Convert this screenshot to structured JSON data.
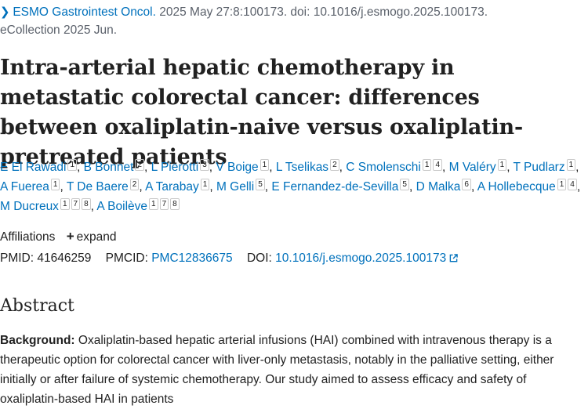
{
  "citation": {
    "journal": "ESMO Gastrointest Oncol.",
    "details": "2025 May 27:8:100173. doi: 10.1016/j.esmogo.2025.100173.",
    "ecollection": "eCollection 2025 Jun."
  },
  "title": "Intra-arterial hepatic chemotherapy in metastatic colorectal cancer: differences between oxaliplatin-naive versus oxaliplatin-pretreated patients",
  "authors": [
    {
      "name": "E El Rawadi",
      "affs": [
        "1"
      ]
    },
    {
      "name": "B Bonnet",
      "affs": [
        "2"
      ]
    },
    {
      "name": "L Pierotti",
      "affs": [
        "3"
      ]
    },
    {
      "name": "V Boige",
      "affs": [
        "1"
      ]
    },
    {
      "name": "L Tselikas",
      "affs": [
        "2"
      ]
    },
    {
      "name": "C Smolenschi",
      "affs": [
        "1",
        "4"
      ]
    },
    {
      "name": "M Valéry",
      "affs": [
        "1"
      ]
    },
    {
      "name": "T Pudlarz",
      "affs": [
        "1"
      ]
    },
    {
      "name": "A Fuerea",
      "affs": [
        "1"
      ]
    },
    {
      "name": "T De Baere",
      "affs": [
        "2"
      ]
    },
    {
      "name": "A Tarabay",
      "affs": [
        "1"
      ]
    },
    {
      "name": "M Gelli",
      "affs": [
        "5"
      ]
    },
    {
      "name": "E Fernandez-de-Sevilla",
      "affs": [
        "5"
      ]
    },
    {
      "name": "D Malka",
      "affs": [
        "6"
      ]
    },
    {
      "name": "A Hollebecque",
      "affs": [
        "1",
        "4"
      ]
    },
    {
      "name": "M Ducreux",
      "affs": [
        "1",
        "7",
        "8"
      ]
    },
    {
      "name": "A Boilève",
      "affs": [
        "1",
        "7",
        "8"
      ]
    }
  ],
  "affiliations": {
    "label": "Affiliations",
    "expand_label": "expand",
    "expand_icon": "plus-icon"
  },
  "ids": {
    "pmid_label": "PMID:",
    "pmid": "41646259",
    "pmcid_label": "PMCID:",
    "pmcid": "PMC12836675",
    "doi_label": "DOI:",
    "doi": "10.1016/j.esmogo.2025.100173",
    "doi_icon": "external-link-icon"
  },
  "abstract": {
    "heading": "Abstract",
    "background_label": "Background:",
    "background_text": " Oxaliplatin-based hepatic arterial infusions (HAI) combined with intravenous therapy is a therapeutic option for colorectal cancer with liver-only metastasis, notably in the palliative setting, either initially or after failure of systemic chemotherapy. Our study aimed to assess efficacy and safety of oxaliplatin-based HAI in patients"
  },
  "colors": {
    "link": "#0071bc",
    "text": "#212121",
    "muted": "#5b616b",
    "badge_border": "#c9c9c9"
  }
}
